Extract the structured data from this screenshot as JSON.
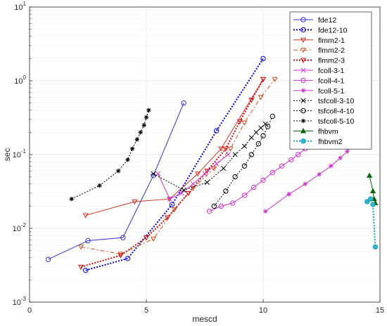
{
  "chart_data": {
    "type": "line",
    "xlabel": "mescd",
    "ylabel": "sec",
    "xlim": [
      0,
      15
    ],
    "ylim": [
      0.001,
      10
    ],
    "yscale": "log",
    "grid": true,
    "legend_position": "top-right",
    "x_ticks": [
      {
        "value": 0,
        "label": "0"
      },
      {
        "value": 5,
        "label": "5"
      },
      {
        "value": 10,
        "label": "10"
      },
      {
        "value": 15,
        "label": "15"
      }
    ],
    "y_ticks": [
      {
        "value": 0.001,
        "base": "10",
        "exp": "-3"
      },
      {
        "value": 0.01,
        "base": "10",
        "exp": "-2"
      },
      {
        "value": 0.1,
        "base": "10",
        "exp": "-1"
      },
      {
        "value": 1,
        "base": "10",
        "exp": "0"
      },
      {
        "value": 10,
        "base": "10",
        "exp": "1"
      }
    ],
    "series": [
      {
        "name": "fde12",
        "color": "#3333cc",
        "dash": "",
        "marker": "circle",
        "marker_fill": "none",
        "x": [
          0.8,
          2.5,
          4.0,
          5.3,
          6.6
        ],
        "y": [
          0.0038,
          0.0068,
          0.0075,
          0.052,
          0.5
        ]
      },
      {
        "name": "fde12-10",
        "color": "#0000cc",
        "dash": "2,2",
        "marker": "circle",
        "marker_fill": "none",
        "width": 2,
        "x": [
          2.4,
          4.2,
          6.1,
          8.0,
          10.0
        ],
        "y": [
          0.0027,
          0.0039,
          0.021,
          0.21,
          2.0
        ]
      },
      {
        "name": "flmm2-1",
        "color": "#cc3322",
        "dash": "",
        "marker": "triangle-down",
        "marker_fill": "none",
        "x": [
          2.4,
          4.5,
          6.0,
          7.2,
          8.2,
          10.0
        ],
        "y": [
          0.015,
          0.023,
          0.025,
          0.055,
          0.12,
          1.05
        ]
      },
      {
        "name": "flmm2-2",
        "color": "#cc5522",
        "dash": "6,3,2,3",
        "marker": "triangle-down",
        "marker_fill": "none",
        "x": [
          2.2,
          3.9,
          5.3,
          6.2,
          7.0,
          7.9,
          8.6,
          9.2,
          9.9,
          10.5
        ],
        "y": [
          0.0056,
          0.0045,
          0.0072,
          0.018,
          0.035,
          0.065,
          0.12,
          0.27,
          0.6,
          1.05
        ]
      },
      {
        "name": "flmm2-3",
        "color": "#cc1111",
        "dash": "2,2",
        "marker": "triangle-down",
        "marker_fill": "none",
        "width": 2,
        "x": [
          2.2,
          3.9,
          5.0,
          5.9,
          6.8,
          7.6,
          8.4,
          9.0,
          9.5,
          10.0
        ],
        "y": [
          0.003,
          0.0043,
          0.0075,
          0.014,
          0.03,
          0.06,
          0.12,
          0.28,
          0.55,
          1.05
        ]
      },
      {
        "name": "fcoll-3-1",
        "color": "#cc33cc",
        "dash": "",
        "marker": "x",
        "marker_fill": "none",
        "x": [
          5.5,
          6.0,
          6.5,
          7.0,
          7.5,
          8.0,
          8.5
        ],
        "y": [
          0.055,
          0.025,
          0.03,
          0.04,
          0.055,
          0.075,
          0.1
        ]
      },
      {
        "name": "fcoll-4-1",
        "color": "#cc33cc",
        "dash": "",
        "marker": "circle",
        "marker_fill": "none",
        "x": [
          7.7,
          8.2,
          8.7,
          9.2,
          9.6,
          10.0,
          10.4,
          10.8,
          11.2,
          11.5,
          11.8,
          12.1,
          12.4,
          12.7
        ],
        "y": [
          0.017,
          0.02,
          0.022,
          0.028,
          0.036,
          0.045,
          0.057,
          0.07,
          0.085,
          0.1,
          0.12,
          0.14,
          0.16,
          0.18
        ]
      },
      {
        "name": "fcoll-5-1",
        "color": "#cc33cc",
        "dash": "",
        "marker": "asterisk",
        "marker_fill": "none",
        "x": [
          10.1,
          11.1,
          11.8,
          12.4,
          12.9,
          13.3,
          13.6,
          13.85,
          14.1,
          14.3
        ],
        "y": [
          0.017,
          0.029,
          0.04,
          0.054,
          0.07,
          0.09,
          0.11,
          0.14,
          0.18,
          0.22
        ]
      },
      {
        "name": "tsfcoll-3-10",
        "color": "#000000",
        "dash": "2,2",
        "marker": "x",
        "marker_fill": "none",
        "x": [
          5.3,
          6.6,
          7.6,
          8.3,
          8.8,
          9.2,
          9.5,
          9.7,
          9.9,
          10.1
        ],
        "y": [
          0.055,
          0.033,
          0.042,
          0.065,
          0.1,
          0.13,
          0.17,
          0.2,
          0.23,
          0.26
        ]
      },
      {
        "name": "tsfcoll-4-10",
        "color": "#000000",
        "dash": "2,2",
        "marker": "circle",
        "marker_fill": "none",
        "x": [
          7.9,
          8.4,
          8.8,
          9.2,
          9.5,
          9.8,
          10.0,
          10.2,
          10.4
        ],
        "y": [
          0.02,
          0.032,
          0.05,
          0.07,
          0.1,
          0.14,
          0.18,
          0.24,
          0.33
        ]
      },
      {
        "name": "tsfcoll-5-10",
        "color": "#000000",
        "dash": "2,2",
        "marker": "asterisk",
        "marker_fill": "none",
        "x": [
          1.8,
          3.0,
          3.8,
          4.2,
          4.4,
          4.6,
          4.75,
          4.9,
          5.0,
          5.1
        ],
        "y": [
          0.025,
          0.038,
          0.06,
          0.085,
          0.12,
          0.16,
          0.2,
          0.25,
          0.32,
          0.4
        ]
      },
      {
        "name": "fhbvm",
        "color": "#006400",
        "dash": "",
        "marker": "triangle-up",
        "marker_fill": "#006400",
        "x": [
          14.55,
          14.7,
          14.75,
          14.8
        ],
        "y": [
          0.052,
          0.032,
          0.025,
          0.022
        ]
      },
      {
        "name": "fhbvm2",
        "color": "#1f9bb5",
        "dash": "2,2",
        "marker": "circle",
        "marker_fill": "#2cb8d0",
        "width": 2,
        "x": [
          14.45,
          14.6,
          14.7,
          14.8
        ],
        "y": [
          0.023,
          0.025,
          0.021,
          0.0056
        ]
      }
    ]
  }
}
